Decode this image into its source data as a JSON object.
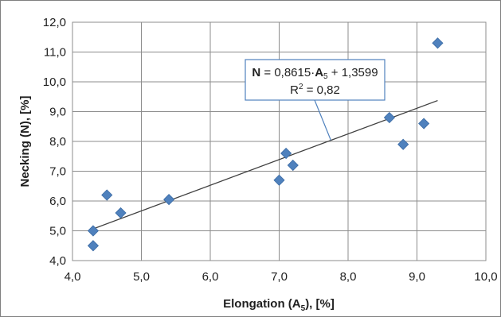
{
  "chart_data": {
    "type": "scatter",
    "title": "",
    "xlabel": "Elongation (A",
    "xlabel_sub": "5",
    "xlabel_suffix": "), [%]",
    "ylabel": "Necking (N), [%]",
    "xlim": [
      4.0,
      10.0
    ],
    "ylim": [
      4.0,
      12.0
    ],
    "x_ticks": [
      4.0,
      5.0,
      6.0,
      7.0,
      8.0,
      9.0,
      10.0
    ],
    "y_ticks": [
      4.0,
      5.0,
      6.0,
      7.0,
      8.0,
      9.0,
      10.0,
      11.0,
      12.0
    ],
    "x_tick_labels": [
      "4,0",
      "5,0",
      "6,0",
      "7,0",
      "8,0",
      "9,0",
      "10,0"
    ],
    "y_tick_labels": [
      "4,0",
      "5,0",
      "6,0",
      "7,0",
      "8,0",
      "9,0",
      "10,0",
      "11,0",
      "12,0"
    ],
    "grid": true,
    "marker_color": "#4f81bd",
    "points": [
      {
        "x": 4.3,
        "y": 4.5
      },
      {
        "x": 4.3,
        "y": 5.0
      },
      {
        "x": 4.5,
        "y": 6.2
      },
      {
        "x": 4.7,
        "y": 5.6
      },
      {
        "x": 5.4,
        "y": 6.05
      },
      {
        "x": 7.0,
        "y": 6.7
      },
      {
        "x": 7.1,
        "y": 7.6
      },
      {
        "x": 7.2,
        "y": 7.2
      },
      {
        "x": 8.6,
        "y": 8.8
      },
      {
        "x": 8.8,
        "y": 7.9
      },
      {
        "x": 9.1,
        "y": 8.6
      },
      {
        "x": 9.3,
        "y": 11.3
      }
    ],
    "trendline": {
      "slope": 0.8615,
      "intercept": 1.3599,
      "x_range": [
        4.3,
        9.3
      ],
      "color": "#404040"
    },
    "annotation": {
      "eq_lhs": "N",
      "eq_mid": " = 0,8615·",
      "eq_var": "A",
      "eq_var_sub": "5",
      "eq_rhs": " + 1,3599",
      "r2_label": "R",
      "r2_sup": "2",
      "r2_value": " = 0,82",
      "border_color": "#4f81bd",
      "anchor_point": {
        "x": 7.75,
        "y": 8.04
      }
    }
  }
}
